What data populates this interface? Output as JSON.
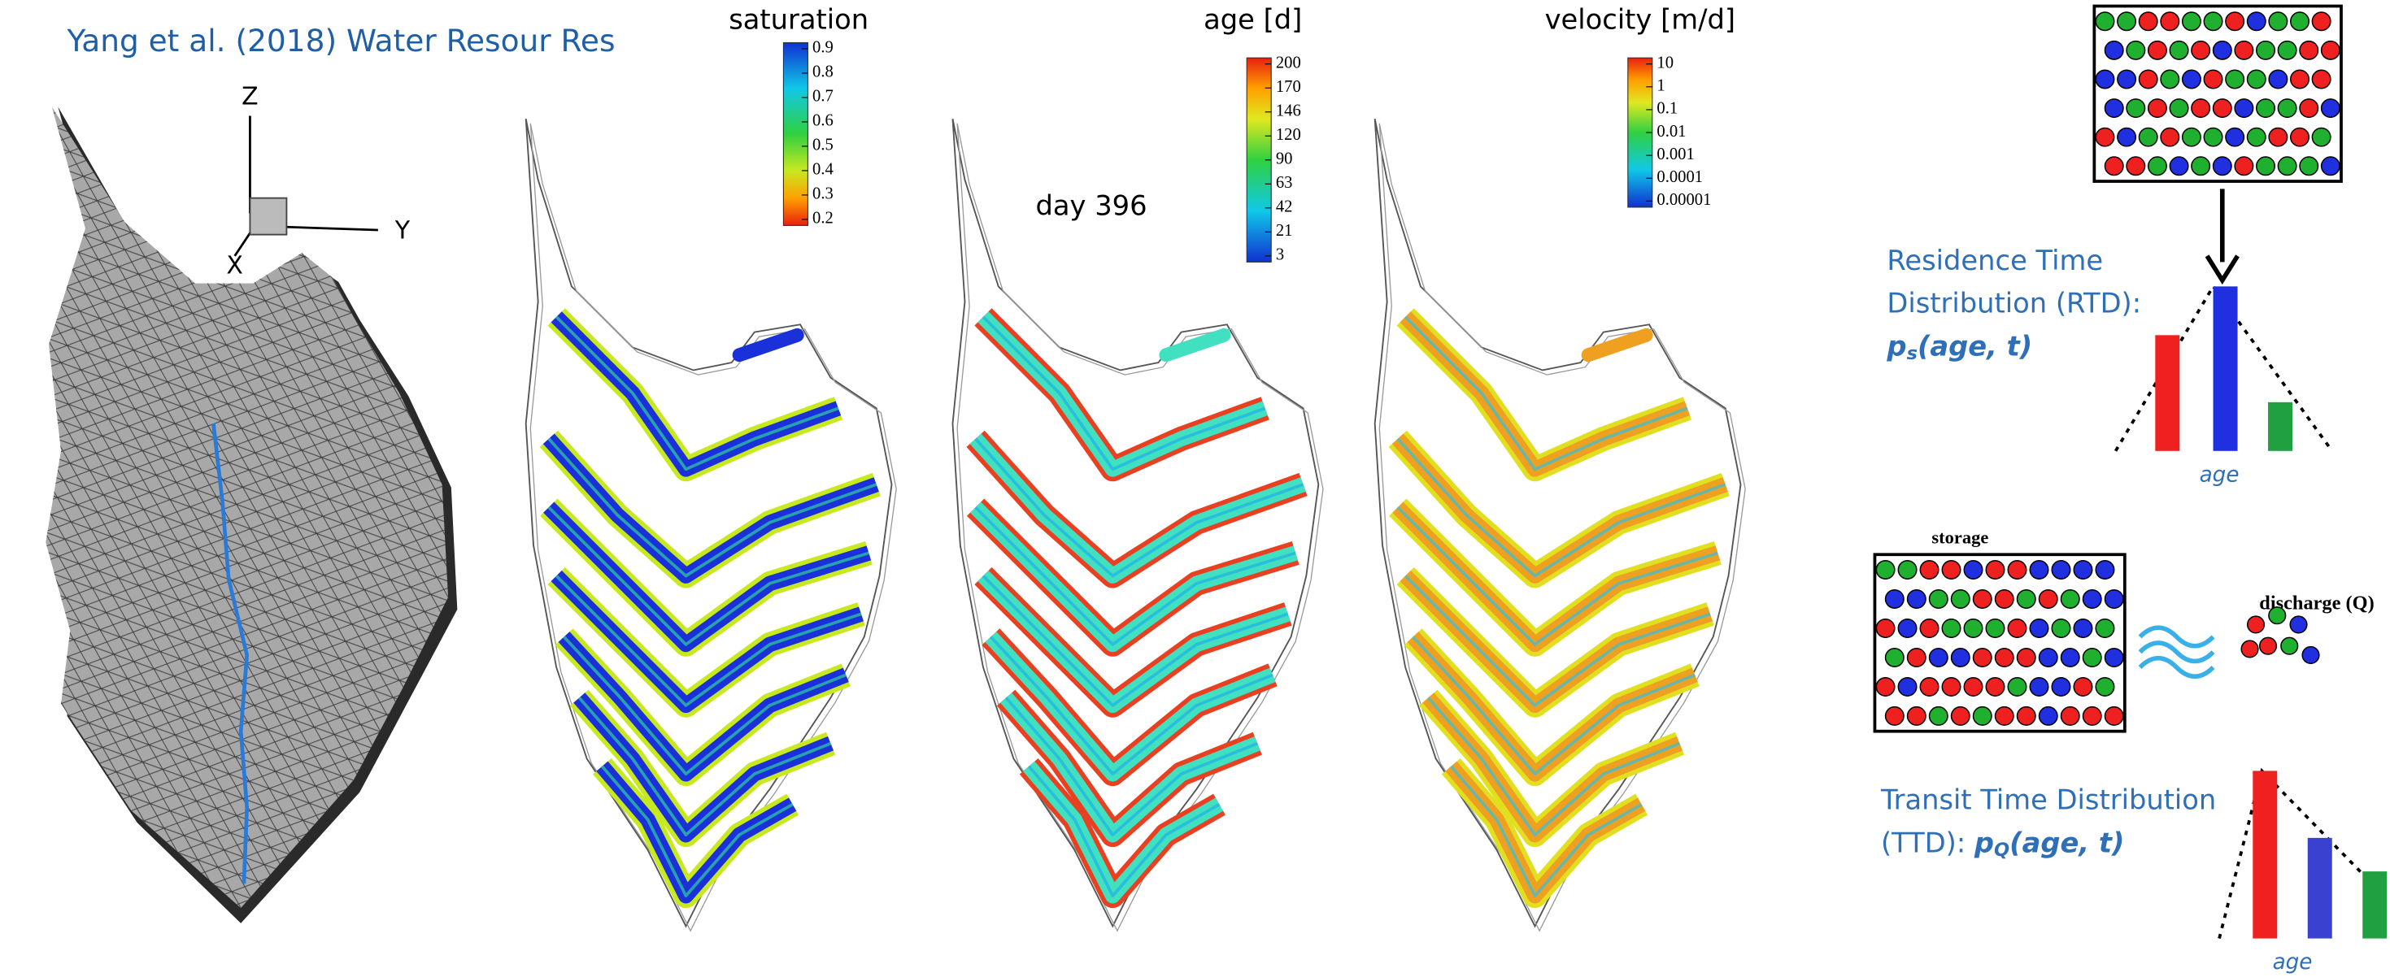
{
  "citation": "Yang et al.  (2018) Water Resour Res",
  "axes": {
    "z": "Z",
    "y": "Y",
    "x": "X"
  },
  "panels": [
    {
      "title": "saturation",
      "colorbar": [
        "0.9",
        "0.8",
        "0.7",
        "0.6",
        "0.5",
        "0.4",
        "0.3",
        "0.2"
      ]
    },
    {
      "title": "age [d]",
      "annotation": "day 396",
      "colorbar": [
        "200",
        "170",
        "146",
        "120",
        "90",
        "63",
        "42",
        "21",
        "3"
      ]
    },
    {
      "title": "velocity [m/d]",
      "colorbar": [
        "10",
        "1",
        "0.1",
        "0.01",
        "0.001",
        "0.0001",
        "0.00001"
      ]
    }
  ],
  "rtd": {
    "line1": "Residence Time",
    "line2": "Distribution (RTD):",
    "symbol": "p",
    "subscript": "s",
    "args": "(age, t)",
    "axis": "age"
  },
  "storage": "storage",
  "discharge": "discharge (Q)",
  "ttd": {
    "line1": "Transit Time Distribution",
    "line2": "(TTD): ",
    "symbol": "p",
    "subscript": "Q",
    "args": "(age, t)",
    "axis": "age"
  }
}
